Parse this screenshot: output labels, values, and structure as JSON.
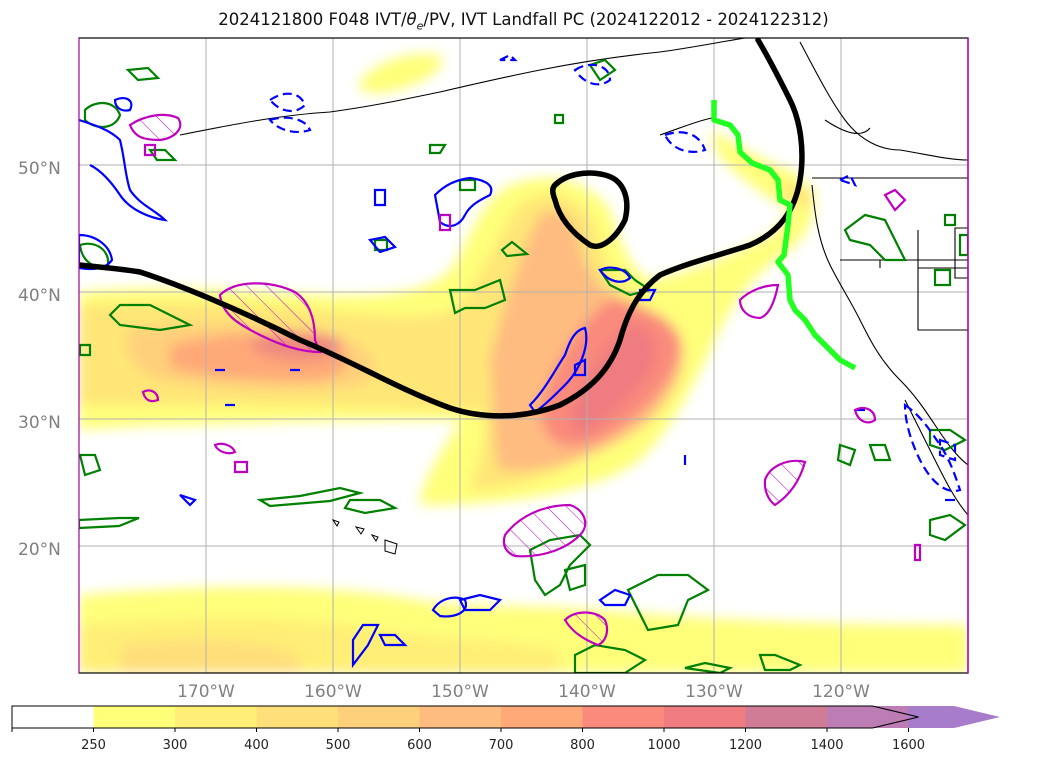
{
  "title": {
    "prefix": "2024121800 F048 IVT/",
    "theta_base": "θ",
    "theta_sub": "e",
    "suffix": "/PV, IVT Landfall PC (2024122012 - 2024122312)"
  },
  "map": {
    "projection": "plate-carree",
    "lon_range": [
      -180,
      -110
    ],
    "lat_range": [
      10,
      60
    ],
    "lat_labels": [
      "20°N",
      "30°N",
      "40°N",
      "50°N"
    ],
    "lon_labels": [
      "170°W",
      "160°W",
      "150°W",
      "140°W",
      "130°W",
      "120°W"
    ],
    "grid": true
  },
  "colorbar": {
    "levels": [
      "250",
      "300",
      "400",
      "500",
      "600",
      "700",
      "800",
      "1000",
      "1200",
      "1400",
      "1600"
    ],
    "colors": [
      "#ffff7a",
      "#ffef76",
      "#ffdf7a",
      "#ffd07c",
      "#ffbc80",
      "#ffa878",
      "#f98a7c",
      "#ee7c80",
      "#d17c96",
      "#bc7cb4",
      "#a77ccb"
    ],
    "extend": "max"
  },
  "colors": {
    "ivt_contour_line": "#000000",
    "landfall_line": "#22ff22",
    "pv_positive": "#008000",
    "pv_negative": "#0000ff",
    "theta_e": "#c000c0"
  }
}
